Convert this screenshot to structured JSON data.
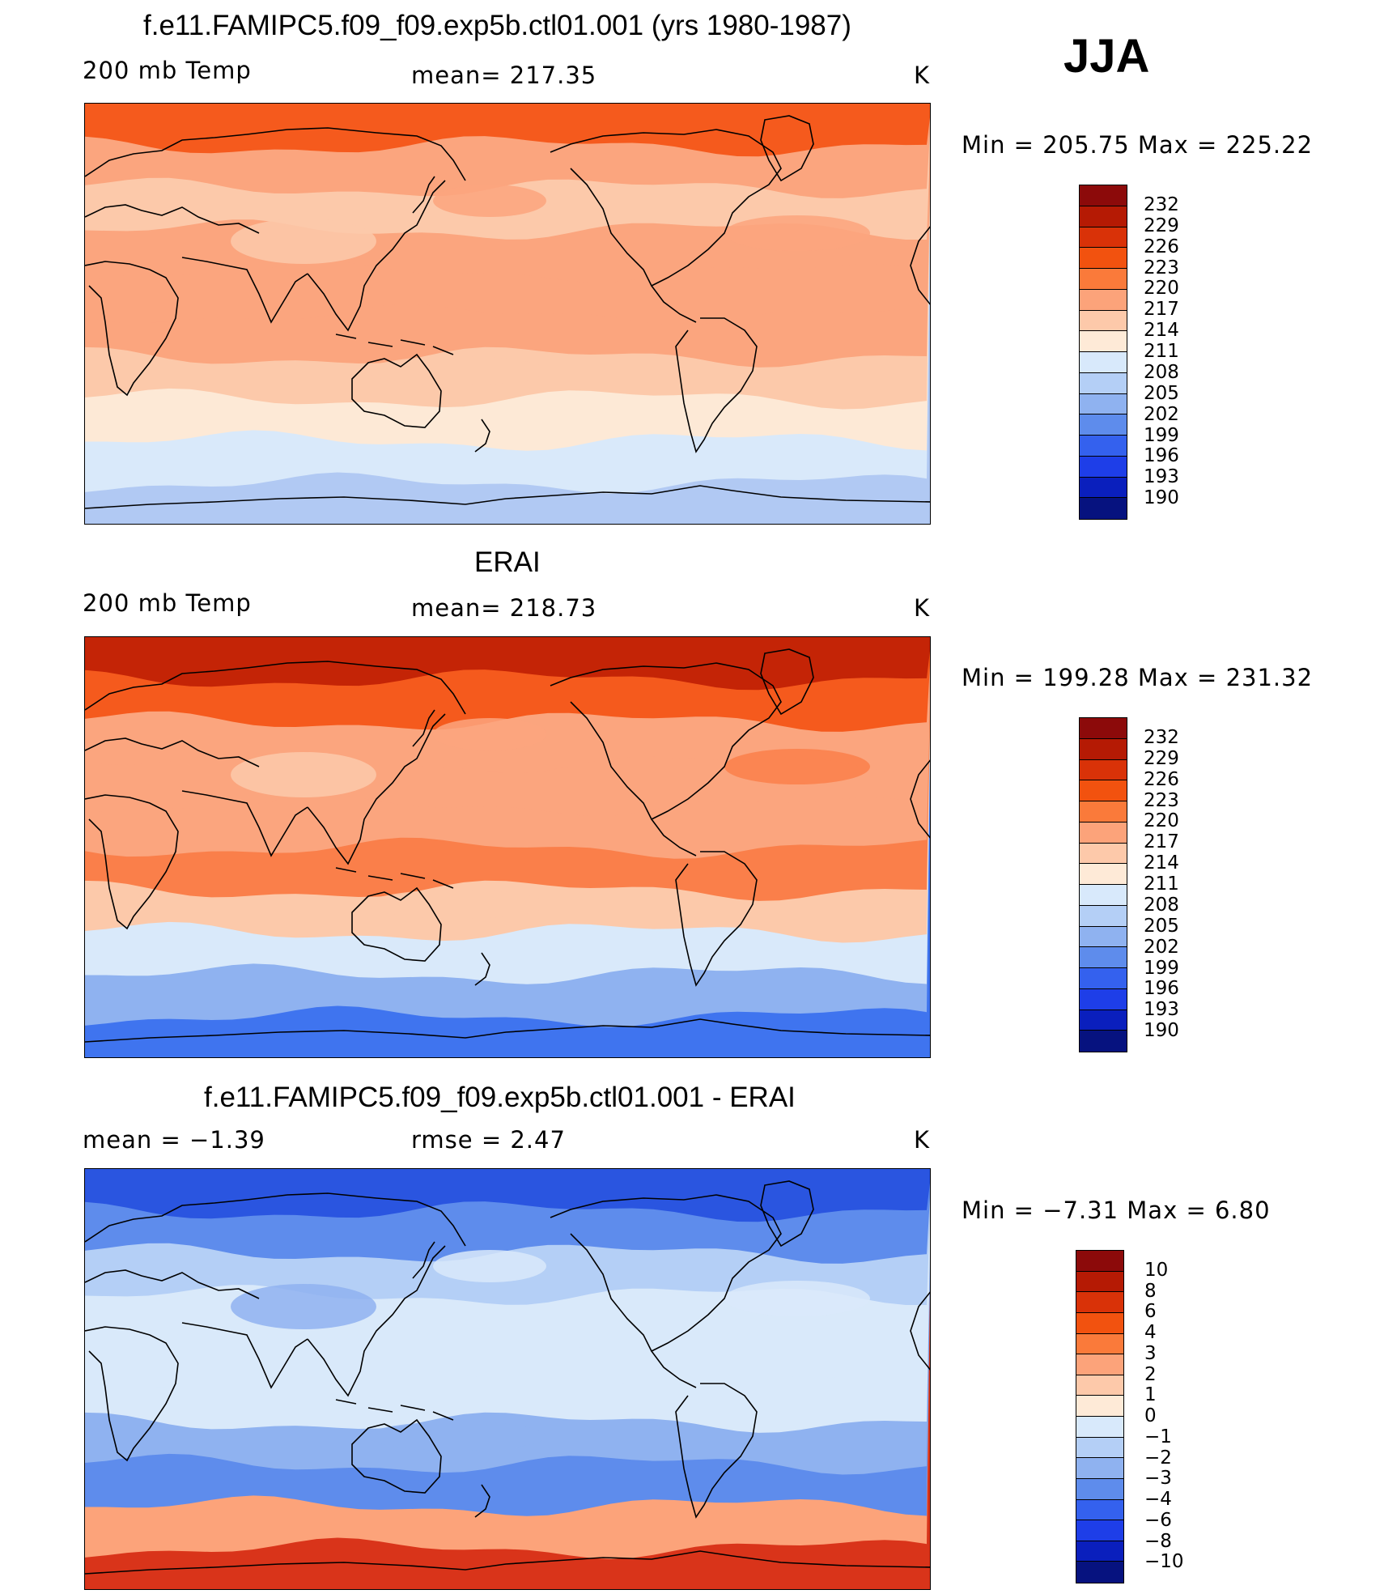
{
  "season": "JJA",
  "units": "K",
  "field_label": "200 mb Temp",
  "panels": [
    {
      "title": "f.e11.FAMIPC5.f09_f09.exp5b.ctl01.001 (yrs 1980-1987)",
      "left_label": "200 mb Temp",
      "center_label": "mean=  217.35",
      "right_label": "K",
      "minmax": "Min  =  205.75  Max  =  225.22",
      "colorbar_labels": [
        "232",
        "229",
        "226",
        "223",
        "220",
        "217",
        "214",
        "211",
        "208",
        "205",
        "202",
        "199",
        "196",
        "193",
        "190"
      ],
      "colorbar_colors": [
        "#8c0a0a",
        "#b51a04",
        "#d93208",
        "#f2520f",
        "#fa7a3a",
        "#fca37a",
        "#fdc9aa",
        "#feead7",
        "#d8e9fb",
        "#b4cff6",
        "#8fb2f0",
        "#5e8cec",
        "#3461ee",
        "#1e3ee8",
        "#0a1fbd",
        "#06127f"
      ],
      "bands": [
        "#b1c9f3",
        "#d9e9fa",
        "#fde9d6",
        "#fcc9aa",
        "#fba57e",
        "#fba57e",
        "#fba57e",
        "#fcc9aa",
        "#fba57e",
        "#f55a1d"
      ]
    },
    {
      "title": "ERAI",
      "left_label": "200 mb Temp",
      "center_label": "mean=  218.73",
      "right_label": "K",
      "minmax": "Min  =  199.28  Max  =  231.32",
      "colorbar_labels": [
        "232",
        "229",
        "226",
        "223",
        "220",
        "217",
        "214",
        "211",
        "208",
        "205",
        "202",
        "199",
        "196",
        "193",
        "190"
      ],
      "colorbar_colors": [
        "#8c0a0a",
        "#b51a04",
        "#d93208",
        "#f2520f",
        "#fa7a3a",
        "#fca37a",
        "#fdc9aa",
        "#feead7",
        "#d8e9fb",
        "#b4cff6",
        "#8fb2f0",
        "#5e8cec",
        "#3461ee",
        "#1e3ee8",
        "#0a1fbd",
        "#06127f"
      ],
      "bands": [
        "#3f74ef",
        "#8fb2f0",
        "#d9e9fa",
        "#fcc9aa",
        "#fa7f4a",
        "#fba57e",
        "#fba57e",
        "#fba57e",
        "#f55a1d",
        "#c42406"
      ]
    },
    {
      "title": "f.e11.FAMIPC5.f09_f09.exp5b.ctl01.001 - ERAI",
      "left_label": "mean  =    −1.39",
      "center_label": "rmse  =     2.47",
      "right_label": "K",
      "minmax": "Min  =    −7.31  Max  =      6.80",
      "colorbar_labels": [
        "10",
        "8",
        "6",
        "4",
        "3",
        "2",
        "1",
        "0",
        "−1",
        "−2",
        "−3",
        "−4",
        "−6",
        "−8",
        "−10"
      ],
      "colorbar_colors": [
        "#8c0a0a",
        "#b51a04",
        "#d93208",
        "#f2520f",
        "#fa7a3a",
        "#fca37a",
        "#fdc9aa",
        "#feead7",
        "#d8e9fb",
        "#b4cff6",
        "#8fb2f0",
        "#5e8cec",
        "#3461ee",
        "#1e3ee8",
        "#0a1fbd",
        "#06127f"
      ],
      "bands": [
        "#d9341a",
        "#fca37a",
        "#5e8cec",
        "#8fb2f0",
        "#d9e9fa",
        "#d9e9fa",
        "#d9e9fa",
        "#b4cff6",
        "#5e8cec",
        "#2a55e0"
      ]
    }
  ]
}
